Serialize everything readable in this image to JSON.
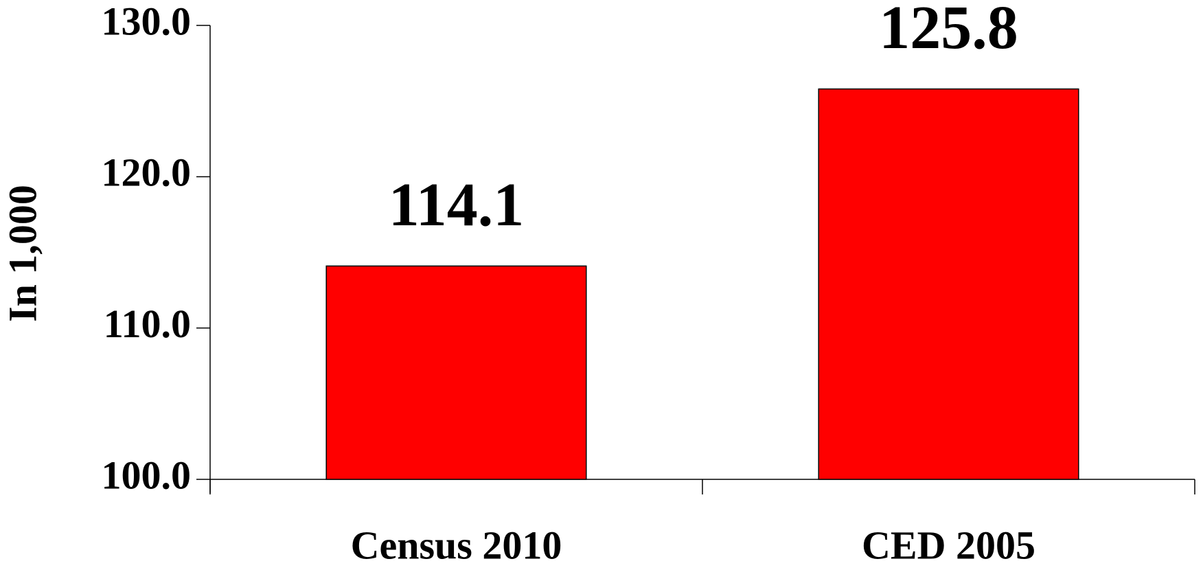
{
  "chart_data": {
    "type": "bar",
    "y_label": "In 1,000",
    "categories": [
      "Census 2010",
      "CED 2005"
    ],
    "values": [
      114.1,
      125.8
    ],
    "color": "#ff0000",
    "ylim": [
      100,
      130
    ],
    "yticks": [
      {
        "value": 100,
        "label": "100.0"
      },
      {
        "value": 110,
        "label": "110.0"
      },
      {
        "value": 120,
        "label": "120.0"
      },
      {
        "value": 130,
        "label": "130.0"
      }
    ]
  }
}
